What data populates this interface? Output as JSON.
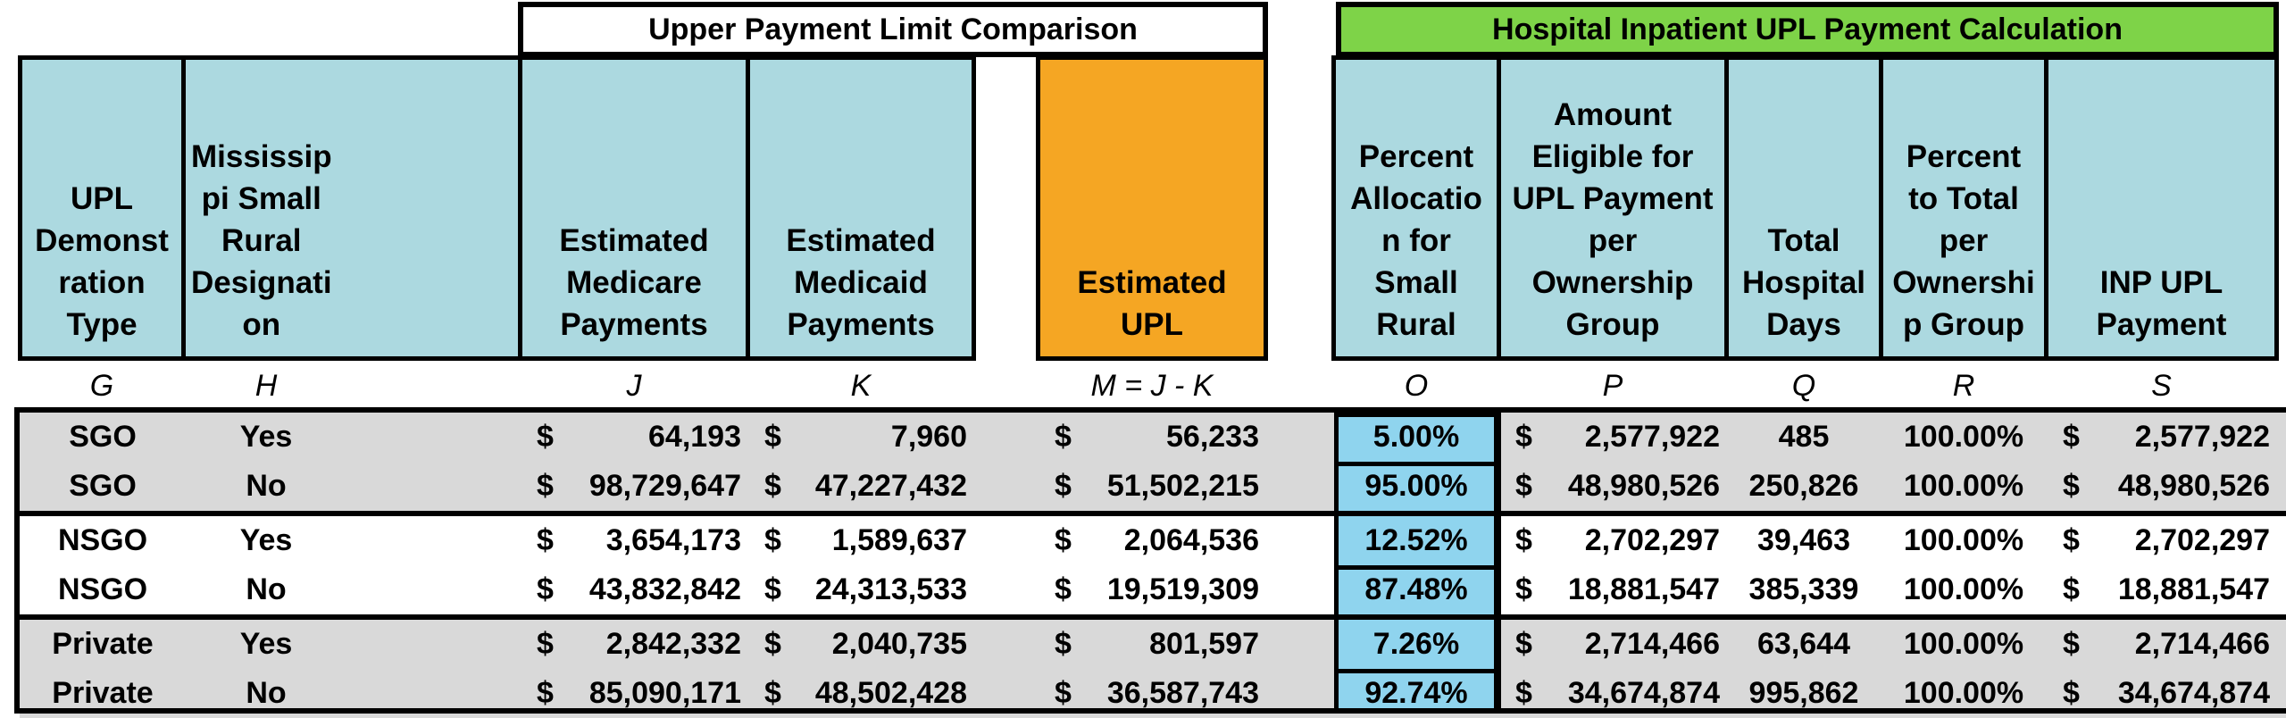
{
  "titles": {
    "upl_comparison": "Upper Payment Limit Comparison",
    "hospital_calc": "Hospital Inpatient UPL Payment Calculation"
  },
  "headers": {
    "g": "UPL\nDemonst\nration\nType",
    "h": "Mississip\npi Small\nRural\nDesignati\non",
    "j": "Estimated\nMedicare\nPayments",
    "k": "Estimated\nMedicaid\nPayments",
    "m": "Estimated\nUPL",
    "o": "Percent\nAllocatio\nn for\nSmall\nRural",
    "p": "Amount\nEligible for\nUPL Payment\nper\nOwnership\nGroup",
    "q": "Total\nHospital\nDays",
    "r": "Percent\nto Total\nper\nOwnershi\np Group",
    "s": "INP UPL\nPayment"
  },
  "letters": {
    "g": "G",
    "h": "H",
    "j": "J",
    "k": "K",
    "m": "M = J - K",
    "o": "O",
    "p": "P",
    "q": "Q",
    "r": "R",
    "s": "S"
  },
  "currency_symbol": "$",
  "rows": [
    {
      "type": "SGO",
      "designation": "Yes",
      "medicare": "64,193",
      "medicaid": "7,960",
      "upl": "56,233",
      "pct_alloc": "5.00%",
      "eligible": "2,577,922",
      "days": "485",
      "pct_total": "100.00%",
      "payment": "2,577,922"
    },
    {
      "type": "SGO",
      "designation": "No",
      "medicare": "98,729,647",
      "medicaid": "47,227,432",
      "upl": "51,502,215",
      "pct_alloc": "95.00%",
      "eligible": "48,980,526",
      "days": "250,826",
      "pct_total": "100.00%",
      "payment": "48,980,526"
    },
    {
      "type": "NSGO",
      "designation": "Yes",
      "medicare": "3,654,173",
      "medicaid": "1,589,637",
      "upl": "2,064,536",
      "pct_alloc": "12.52%",
      "eligible": "2,702,297",
      "days": "39,463",
      "pct_total": "100.00%",
      "payment": "2,702,297"
    },
    {
      "type": "NSGO",
      "designation": "No",
      "medicare": "43,832,842",
      "medicaid": "24,313,533",
      "upl": "19,519,309",
      "pct_alloc": "87.48%",
      "eligible": "18,881,547",
      "days": "385,339",
      "pct_total": "100.00%",
      "payment": "18,881,547"
    },
    {
      "type": "Private",
      "designation": "Yes",
      "medicare": "2,842,332",
      "medicaid": "2,040,735",
      "upl": "801,597",
      "pct_alloc": "7.26%",
      "eligible": "2,714,466",
      "days": "63,644",
      "pct_total": "100.00%",
      "payment": "2,714,466"
    },
    {
      "type": "Private",
      "designation": "No",
      "medicare": "85,090,171",
      "medicaid": "48,502,428",
      "upl": "36,587,743",
      "pct_alloc": "92.74%",
      "eligible": "34,674,874",
      "days": "995,862",
      "pct_total": "100.00%",
      "payment": "34,674,874"
    }
  ],
  "colors": {
    "header_blue": "#acd9e0",
    "estimated_upl_orange": "#f5a623",
    "title_green": "#7ed348",
    "row_band_grey": "#d9d9d9",
    "percent_cell_blue": "#8fd4ee"
  }
}
